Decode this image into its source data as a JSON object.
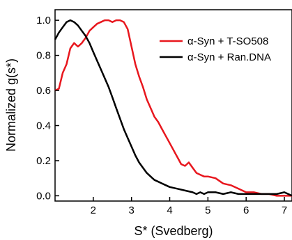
{
  "chart_data": {
    "type": "line",
    "xlabel": "S* (Svedberg)",
    "ylabel": "Normalized g(s*)",
    "xlim": [
      1.0,
      7.2
    ],
    "ylim": [
      -0.03,
      1.06
    ],
    "xticks": [
      2,
      3,
      4,
      5,
      6,
      7
    ],
    "yticks": [
      0.0,
      0.2,
      0.4,
      0.6,
      0.8,
      1.0
    ],
    "xtick_labels": [
      "2",
      "3",
      "4",
      "5",
      "6",
      "7"
    ],
    "ytick_labels": [
      "0.0",
      "0.2",
      "0.4",
      "0.6",
      "0.8",
      "1.0"
    ],
    "grid": false,
    "legend_position": "top-right",
    "series": [
      {
        "name": "α-Syn + T-SO508",
        "color": "#e8171e",
        "x": [
          1.0,
          1.1,
          1.2,
          1.3,
          1.4,
          1.5,
          1.6,
          1.7,
          1.8,
          1.9,
          2.0,
          2.1,
          2.2,
          2.3,
          2.4,
          2.5,
          2.6,
          2.7,
          2.8,
          2.9,
          3.0,
          3.1,
          3.2,
          3.3,
          3.4,
          3.5,
          3.6,
          3.7,
          3.8,
          3.9,
          4.0,
          4.1,
          4.2,
          4.3,
          4.4,
          4.5,
          4.6,
          4.7,
          4.8,
          4.9,
          5.0,
          5.2,
          5.4,
          5.6,
          5.8,
          6.0,
          6.2,
          6.4,
          6.6,
          6.8,
          7.0,
          7.2
        ],
        "y": [
          0.6,
          0.61,
          0.7,
          0.75,
          0.84,
          0.87,
          0.85,
          0.87,
          0.9,
          0.94,
          0.96,
          0.98,
          0.99,
          1.0,
          1.0,
          0.99,
          1.0,
          1.0,
          0.99,
          0.95,
          0.85,
          0.75,
          0.68,
          0.62,
          0.55,
          0.5,
          0.45,
          0.42,
          0.38,
          0.34,
          0.3,
          0.26,
          0.22,
          0.18,
          0.17,
          0.19,
          0.16,
          0.13,
          0.12,
          0.11,
          0.11,
          0.1,
          0.07,
          0.06,
          0.04,
          0.02,
          0.02,
          0.01,
          0.01,
          0.0,
          0.0,
          0.0
        ]
      },
      {
        "name": "α-Syn + Ran.DNA",
        "color": "#000000",
        "x": [
          1.0,
          1.1,
          1.2,
          1.3,
          1.4,
          1.5,
          1.6,
          1.7,
          1.8,
          1.9,
          2.0,
          2.1,
          2.2,
          2.3,
          2.4,
          2.5,
          2.6,
          2.7,
          2.8,
          2.9,
          3.0,
          3.1,
          3.2,
          3.3,
          3.4,
          3.5,
          3.6,
          3.7,
          3.8,
          3.9,
          4.0,
          4.2,
          4.4,
          4.6,
          4.7,
          4.8,
          4.9,
          5.0,
          5.2,
          5.4,
          5.6,
          5.8,
          6.0,
          6.2,
          6.4,
          6.6,
          6.8,
          7.0,
          7.2
        ],
        "y": [
          0.89,
          0.93,
          0.96,
          0.99,
          1.0,
          0.99,
          0.97,
          0.94,
          0.91,
          0.87,
          0.82,
          0.77,
          0.72,
          0.67,
          0.62,
          0.56,
          0.5,
          0.44,
          0.38,
          0.33,
          0.28,
          0.23,
          0.19,
          0.16,
          0.13,
          0.11,
          0.09,
          0.08,
          0.07,
          0.06,
          0.05,
          0.04,
          0.03,
          0.02,
          0.01,
          0.02,
          0.01,
          0.02,
          0.02,
          0.01,
          0.02,
          0.01,
          0.01,
          0.01,
          0.01,
          0.01,
          0.01,
          0.02,
          0.0
        ]
      }
    ]
  }
}
